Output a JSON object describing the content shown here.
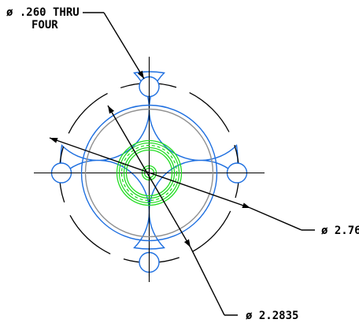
{
  "drawing": {
    "colors": {
      "outline": "#1e6fe0",
      "dimension": "#000000",
      "connector": "#22dd22",
      "bore": "#909090"
    },
    "callouts": {
      "hole_note_line1": "ø .260 THRU",
      "hole_note_line2": "FOUR",
      "bolt_circle_dia": "ø 2.76",
      "pilot_dia": "ø 2.2835"
    }
  }
}
